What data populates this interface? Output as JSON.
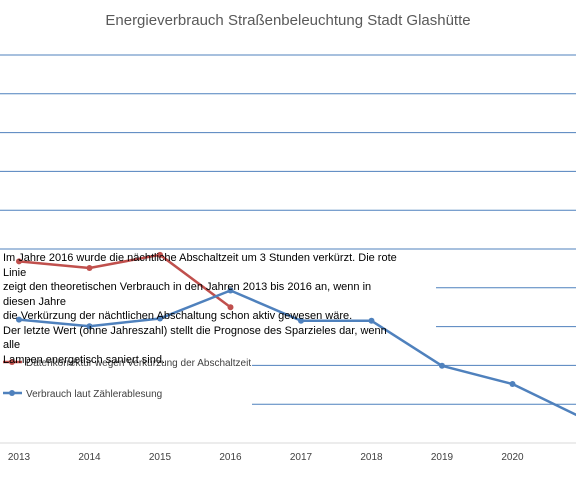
{
  "chart_data": {
    "type": "line",
    "title": "Energieverbrauch Straßenbeleuchtung Stadt Glashütte",
    "categories": [
      "2013",
      "2014",
      "2015",
      "2016",
      "2017",
      "2018",
      "2019",
      "2020",
      ""
    ],
    "series": [
      {
        "name": "Datenkorrektur wegen Verkürzung der Abschaltzeit",
        "color": "#c0504d",
        "values": [
          4.68,
          4.51,
          4.85,
          3.5,
          null,
          null,
          null,
          null,
          null
        ]
      },
      {
        "name": "Verbrauch laut Zählerablesung",
        "color": "#4f81bd",
        "values": [
          3.18,
          3.01,
          3.21,
          3.93,
          3.15,
          3.15,
          1.99,
          1.52,
          0.64
        ]
      }
    ],
    "ylim": [
      0,
      10
    ],
    "grid": true,
    "legend_position": "left",
    "annotation": [
      "Im Jahre 2016 wurde die nächtliche Abschaltzeit um 3 Stunden verkürzt.  Die rote Linie",
      "zeigt den theoretischen Verbrauch in den Jahren 2013 bis 2016 an, wenn in diesen Jahre",
      "die Verkürzung der nächtlichen Abschaltung schon aktiv gewesen wäre.",
      "Der letzte Wert (ohne Jahreszahl) stellt die Prognose des Sparzieles dar, wenn alle",
      "Lampen energetisch saniert sind."
    ]
  }
}
